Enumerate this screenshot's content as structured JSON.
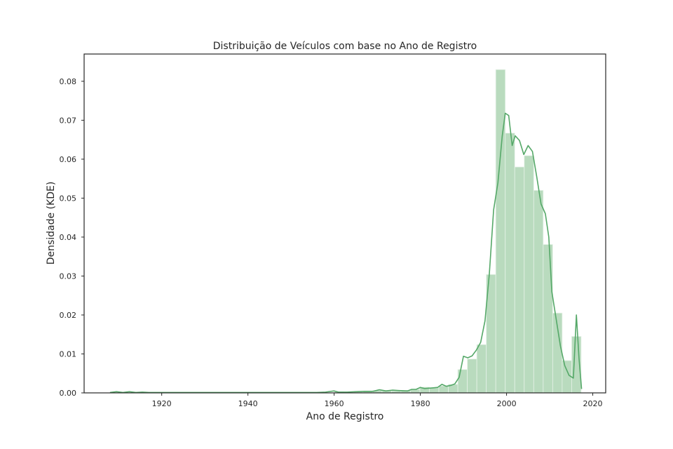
{
  "colors": {
    "bar_fill": "#b9dbbe",
    "bar_edge": "#e6f2e8",
    "kde_line": "#55a868",
    "axis": "#262626",
    "background": "#ffffff"
  },
  "chart_data": {
    "type": "bar",
    "title": "Distribuição de Veículos com base no Ano de Registro",
    "xlabel": "Ano de Registro",
    "ylabel": "Densidade (KDE)",
    "xlim": [
      1902,
      2023
    ],
    "ylim": [
      0,
      0.087
    ],
    "xticks": [
      1920,
      1940,
      1960,
      1980,
      2000,
      2020
    ],
    "yticks": [
      0.0,
      0.01,
      0.02,
      0.03,
      0.04,
      0.05,
      0.06,
      0.07,
      0.08
    ],
    "ytick_labels": [
      "0.00",
      "0.01",
      "0.02",
      "0.03",
      "0.04",
      "0.05",
      "0.06",
      "0.07",
      "0.08"
    ],
    "grid": false,
    "series": [
      {
        "kind": "histogram",
        "bin_width": 2.2,
        "bins": [
          {
            "x0": 1960.1,
            "x1": 1962.3,
            "value": 0.0003
          },
          {
            "x0": 1962.3,
            "x1": 1964.5,
            "value": 0.0002
          },
          {
            "x0": 1964.5,
            "x1": 1966.7,
            "value": 0.0003
          },
          {
            "x0": 1966.7,
            "x1": 1968.9,
            "value": 0.0004
          },
          {
            "x0": 1968.9,
            "x1": 1971.1,
            "value": 0.0006
          },
          {
            "x0": 1971.1,
            "x1": 1973.3,
            "value": 0.0006
          },
          {
            "x0": 1973.3,
            "x1": 1975.5,
            "value": 0.0005
          },
          {
            "x0": 1975.5,
            "x1": 1977.7,
            "value": 0.0006
          },
          {
            "x0": 1977.7,
            "x1": 1979.9,
            "value": 0.0009
          },
          {
            "x0": 1979.9,
            "x1": 1982.1,
            "value": 0.0015
          },
          {
            "x0": 1982.1,
            "x1": 1984.3,
            "value": 0.0013
          },
          {
            "x0": 1984.3,
            "x1": 1986.5,
            "value": 0.0018
          },
          {
            "x0": 1986.5,
            "x1": 1988.7,
            "value": 0.0022
          },
          {
            "x0": 1988.7,
            "x1": 1990.9,
            "value": 0.006
          },
          {
            "x0": 1990.9,
            "x1": 1993.1,
            "value": 0.0087
          },
          {
            "x0": 1993.1,
            "x1": 1995.3,
            "value": 0.0124
          },
          {
            "x0": 1995.3,
            "x1": 1997.5,
            "value": 0.0304
          },
          {
            "x0": 1997.5,
            "x1": 1999.7,
            "value": 0.083
          },
          {
            "x0": 1999.7,
            "x1": 2001.9,
            "value": 0.0667
          },
          {
            "x0": 2001.9,
            "x1": 2004.1,
            "value": 0.058
          },
          {
            "x0": 2004.1,
            "x1": 2006.3,
            "value": 0.0609
          },
          {
            "x0": 2006.3,
            "x1": 2008.5,
            "value": 0.052
          },
          {
            "x0": 2008.5,
            "x1": 2010.7,
            "value": 0.0381
          },
          {
            "x0": 2010.7,
            "x1": 2012.9,
            "value": 0.0205
          },
          {
            "x0": 2012.9,
            "x1": 2015.1,
            "value": 0.0083
          },
          {
            "x0": 2015.1,
            "x1": 2017.3,
            "value": 0.0145
          }
        ]
      },
      {
        "kind": "kde",
        "points": [
          [
            1908,
            0.0001
          ],
          [
            1909.5,
            0.0003
          ],
          [
            1911,
            0.0001
          ],
          [
            1912.5,
            0.0003
          ],
          [
            1914,
            0.0001
          ],
          [
            1915.5,
            0.0002
          ],
          [
            1917,
            0.0001
          ],
          [
            1920,
            0.0001
          ],
          [
            1930,
            0.0001
          ],
          [
            1940,
            0.0001
          ],
          [
            1950,
            0.0001
          ],
          [
            1956,
            0.0001
          ],
          [
            1958,
            0.0002
          ],
          [
            1960,
            0.0005
          ],
          [
            1961,
            0.0002
          ],
          [
            1963,
            0.0002
          ],
          [
            1965,
            0.0003
          ],
          [
            1967,
            0.0004
          ],
          [
            1969,
            0.0004
          ],
          [
            1970.5,
            0.0008
          ],
          [
            1972,
            0.0005
          ],
          [
            1973.5,
            0.0007
          ],
          [
            1975,
            0.0006
          ],
          [
            1977,
            0.0005
          ],
          [
            1978,
            0.0009
          ],
          [
            1979,
            0.0009
          ],
          [
            1980,
            0.0014
          ],
          [
            1981,
            0.0011
          ],
          [
            1982,
            0.0012
          ],
          [
            1983,
            0.0013
          ],
          [
            1984,
            0.0014
          ],
          [
            1985,
            0.0022
          ],
          [
            1986,
            0.0017
          ],
          [
            1987,
            0.0019
          ],
          [
            1988,
            0.0023
          ],
          [
            1989,
            0.004
          ],
          [
            1990,
            0.0094
          ],
          [
            1991,
            0.009
          ],
          [
            1992,
            0.0095
          ],
          [
            1993,
            0.011
          ],
          [
            1994,
            0.013
          ],
          [
            1995,
            0.0185
          ],
          [
            1996,
            0.0305
          ],
          [
            1997,
            0.047
          ],
          [
            1998,
            0.054
          ],
          [
            1999,
            0.066
          ],
          [
            1999.7,
            0.0718
          ],
          [
            2000.5,
            0.0712
          ],
          [
            2001.3,
            0.0635
          ],
          [
            2002,
            0.066
          ],
          [
            2003,
            0.0648
          ],
          [
            2004,
            0.0612
          ],
          [
            2005,
            0.0635
          ],
          [
            2006,
            0.062
          ],
          [
            2007,
            0.0555
          ],
          [
            2008,
            0.0485
          ],
          [
            2009,
            0.046
          ],
          [
            2009.8,
            0.04
          ],
          [
            2010.5,
            0.026
          ],
          [
            2011.5,
            0.019
          ],
          [
            2012.5,
            0.012
          ],
          [
            2013.5,
            0.007
          ],
          [
            2014.5,
            0.0045
          ],
          [
            2015.5,
            0.0038
          ],
          [
            2016.2,
            0.02
          ],
          [
            2016.8,
            0.009
          ],
          [
            2017.4,
            0.001
          ]
        ]
      }
    ]
  }
}
